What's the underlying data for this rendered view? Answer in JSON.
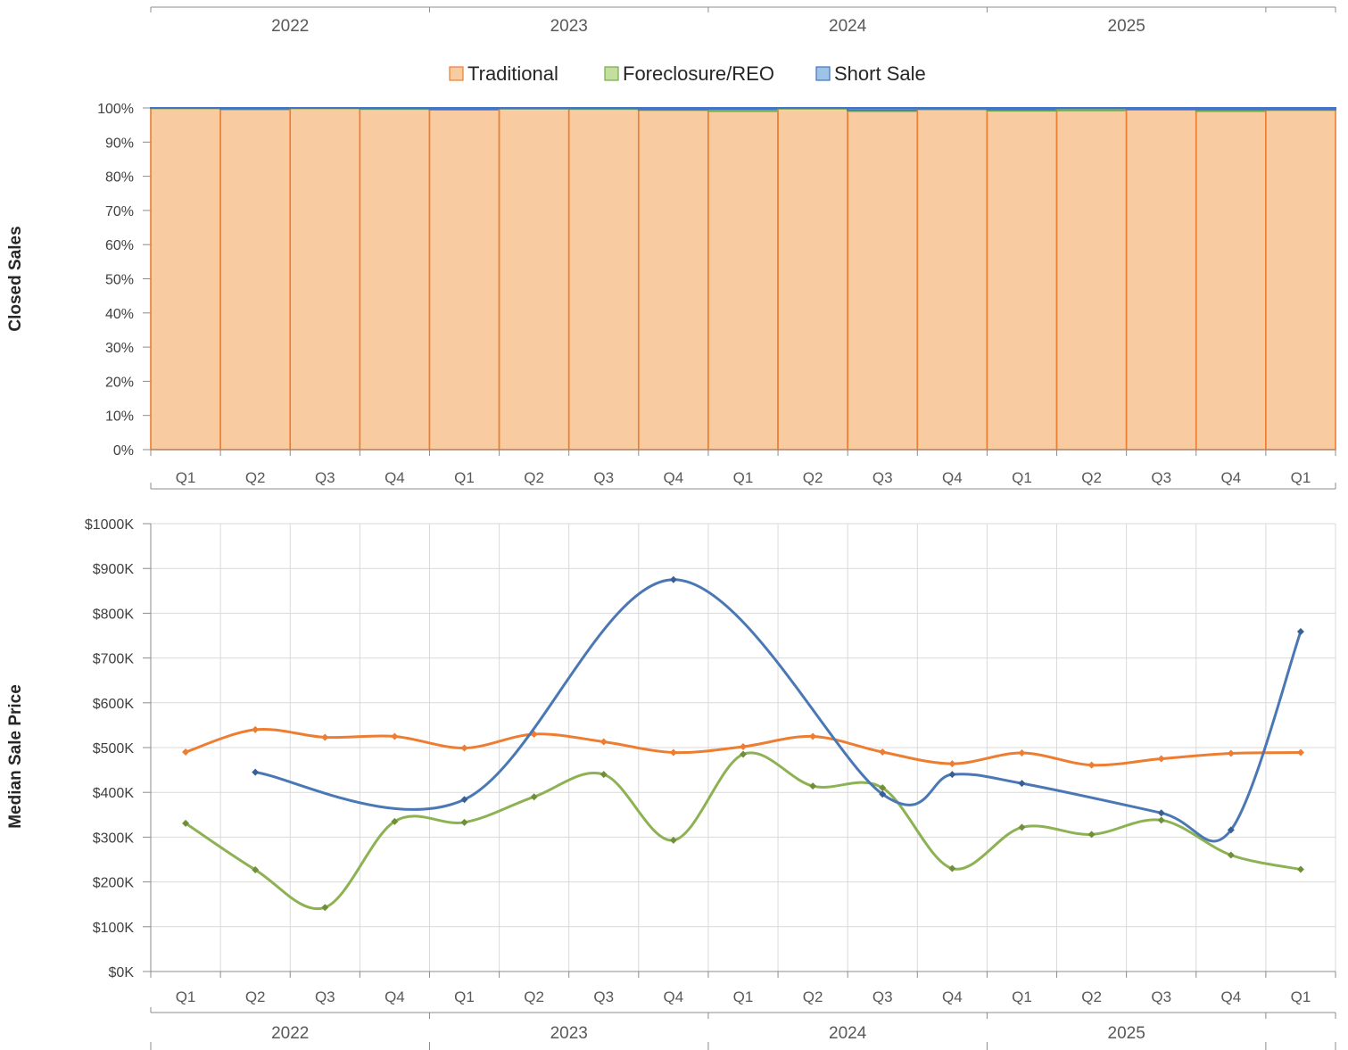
{
  "chart_data": [
    {
      "type": "bar",
      "stacked": true,
      "percent": true,
      "ylabel": "Closed Sales",
      "ylim": [
        0,
        100
      ],
      "y_ticks": [
        "0%",
        "10%",
        "20%",
        "30%",
        "40%",
        "50%",
        "60%",
        "70%",
        "80%",
        "90%",
        "100%"
      ],
      "categories": [
        "Q1",
        "Q2",
        "Q3",
        "Q4",
        "Q1",
        "Q2",
        "Q3",
        "Q4",
        "Q1",
        "Q2",
        "Q3",
        "Q4",
        "Q1",
        "Q2",
        "Q3",
        "Q4",
        "Q1"
      ],
      "year_groups": [
        {
          "label": "2022",
          "count": 4
        },
        {
          "label": "2023",
          "count": 4
        },
        {
          "label": "2024",
          "count": 4
        },
        {
          "label": "2025",
          "count": 4
        },
        {
          "label": "",
          "count": 1
        }
      ],
      "legend": "top",
      "series": [
        {
          "name": "Traditional",
          "color": "#F8CBA0",
          "edge": "#ED7D31",
          "values": [
            99.9,
            99.6,
            99.9,
            99.7,
            99.5,
            99.8,
            99.7,
            99.4,
            99.1,
            99.8,
            99.1,
            99.6,
            99.2,
            99.3,
            99.5,
            99.1,
            99.4
          ]
        },
        {
          "name": "Foreclosure/REO",
          "color": "#C5DEA0",
          "edge": "#70AD47",
          "values": [
            0.1,
            0.2,
            0.1,
            0.2,
            0.2,
            0.1,
            0.2,
            0.2,
            0.6,
            0.2,
            0.3,
            0.2,
            0.4,
            0.6,
            0.2,
            0.5,
            0.2
          ]
        },
        {
          "name": "Short Sale",
          "color": "#9DC3E6",
          "edge": "#4472C4",
          "values": [
            0.0,
            0.2,
            0.0,
            0.1,
            0.3,
            0.1,
            0.1,
            0.4,
            0.3,
            0.0,
            0.6,
            0.2,
            0.4,
            0.1,
            0.3,
            0.4,
            0.4
          ]
        }
      ]
    },
    {
      "type": "line",
      "smooth": true,
      "ylabel": "Median Sale Price",
      "ylim": [
        0,
        1000
      ],
      "y_ticks": [
        "$0K",
        "$100K",
        "$200K",
        "$300K",
        "$400K",
        "$500K",
        "$600K",
        "$700K",
        "$800K",
        "$900K",
        "$1000K"
      ],
      "grid": true,
      "categories": [
        "Q1",
        "Q2",
        "Q3",
        "Q4",
        "Q1",
        "Q2",
        "Q3",
        "Q4",
        "Q1",
        "Q2",
        "Q3",
        "Q4",
        "Q1",
        "Q2",
        "Q3",
        "Q4",
        "Q1"
      ],
      "year_groups": [
        {
          "label": "2022",
          "count": 4
        },
        {
          "label": "2023",
          "count": 4
        },
        {
          "label": "2024",
          "count": 4
        },
        {
          "label": "2025",
          "count": 4
        },
        {
          "label": "",
          "count": 1
        }
      ],
      "series": [
        {
          "name": "Traditional",
          "color": "#ED7D31",
          "values": [
            490,
            540,
            523,
            525,
            499,
            530,
            513,
            489,
            502,
            525,
            490,
            464,
            488,
            461,
            475,
            487,
            489
          ]
        },
        {
          "name": "Foreclosure/REO",
          "color": "#8DB253",
          "values": [
            331,
            227,
            143,
            335,
            333,
            390,
            440,
            293,
            485,
            414,
            410,
            230,
            322,
            306,
            338,
            260,
            228
          ]
        },
        {
          "name": "Short Sale",
          "color": "#4A78B5",
          "values": [
            null,
            445,
            null,
            null,
            384,
            null,
            null,
            875,
            null,
            null,
            396,
            440,
            420,
            null,
            354,
            316,
            759
          ]
        }
      ]
    }
  ]
}
